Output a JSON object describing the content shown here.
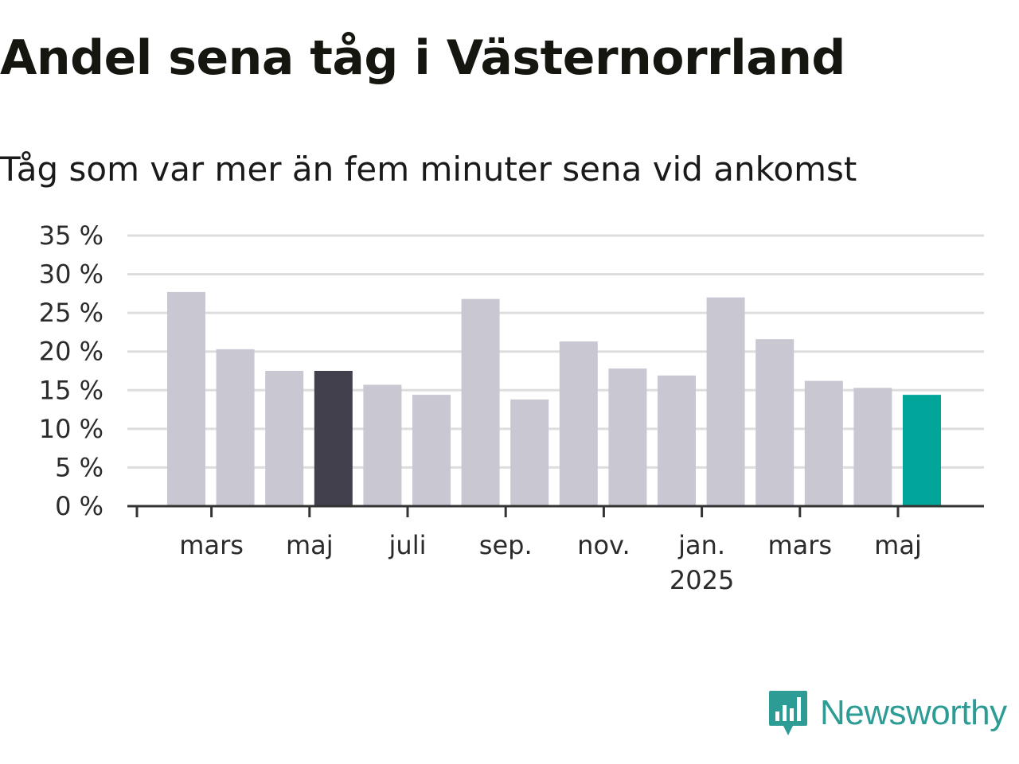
{
  "header": {
    "title": "Andel sena tåg i Västernorrland",
    "subtitle": "Tåg som var mer än fem minuter sena vid ankomst"
  },
  "brand": {
    "name": "Newsworthy",
    "color": "#2d9c95"
  },
  "colors": {
    "bar": "#c8c7d2",
    "highlight": "#42404c",
    "latest": "#02a59a",
    "grid": "#dddddd",
    "axis": "#333333"
  },
  "chart_data": {
    "type": "bar",
    "title": "Andel sena tåg i Västernorrland",
    "subtitle": "Tåg som var mer än fem minuter sena vid ankomst",
    "categories": [
      "2024-01",
      "2024-02",
      "2024-03",
      "2024-04",
      "2024-05",
      "2024-06",
      "2024-07",
      "2024-08",
      "2024-09",
      "2024-10",
      "2024-11",
      "2024-12",
      "2025-01",
      "2025-02",
      "2025-03",
      "2025-04",
      "2025-05"
    ],
    "series": [
      {
        "values": [
          null,
          27.7,
          20.3,
          17.5,
          17.5,
          15.7,
          14.4,
          26.8,
          13.8,
          21.3,
          17.8,
          16.9,
          27.0,
          21.6,
          16.2,
          15.3,
          14.4
        ]
      }
    ],
    "highlight": [
      {
        "category": "2024-05",
        "color": "#42404c"
      },
      {
        "category": "2025-05",
        "color": "#02a59a"
      }
    ],
    "ylim": [
      0,
      35
    ],
    "yticks": [
      0,
      5,
      10,
      15,
      20,
      25,
      30,
      35
    ],
    "ytick_labels": [
      "0 %",
      "5 %",
      "10 %",
      "15 %",
      "20 %",
      "25 %",
      "30 %",
      "35 %"
    ],
    "xticks": [
      {
        "category": "2024-03",
        "label": "mars",
        "sublabel": ""
      },
      {
        "category": "2024-05",
        "label": "maj",
        "sublabel": ""
      },
      {
        "category": "2024-07",
        "label": "juli",
        "sublabel": ""
      },
      {
        "category": "2024-09",
        "label": "sep.",
        "sublabel": ""
      },
      {
        "category": "2024-11",
        "label": "nov.",
        "sublabel": ""
      },
      {
        "category": "2025-01",
        "label": "jan.",
        "sublabel": "2025"
      },
      {
        "category": "2025-03",
        "label": "mars",
        "sublabel": ""
      },
      {
        "category": "2025-05",
        "label": "maj",
        "sublabel": ""
      }
    ],
    "xlabel": "",
    "ylabel": "",
    "grid": true
  }
}
